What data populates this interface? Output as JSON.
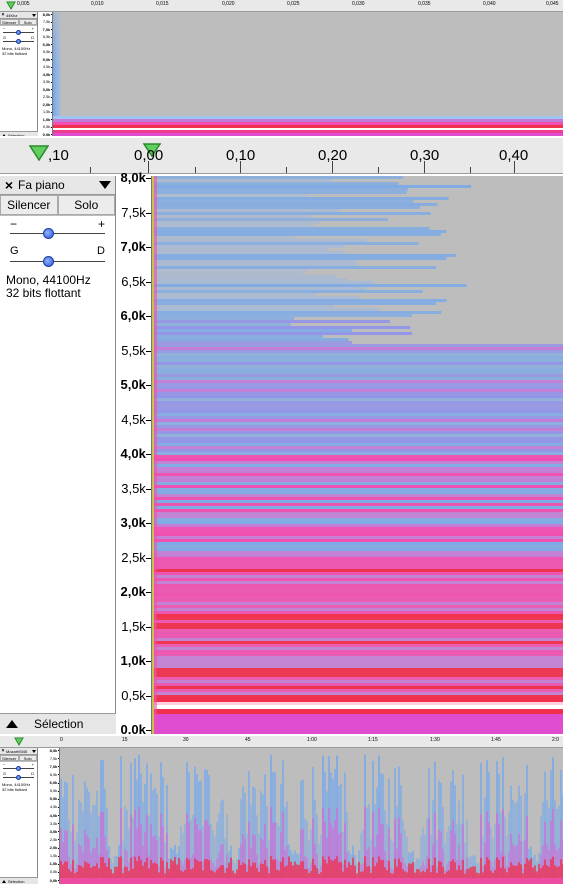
{
  "colors": {
    "background": "#bdbdbd",
    "spectro_blue": "#6ea6f0",
    "spectro_pink": "#f04eb0",
    "spectro_red": "#f0304c",
    "spectro_white": "#ffffff"
  },
  "top_view": {
    "ruler_labels": [
      "0,005",
      "0,010",
      "0,015",
      "0,020",
      "0,025",
      "0,030",
      "0,035",
      "0,040",
      "0,045"
    ],
    "track": {
      "name": "44Khz",
      "mute_label": "Silencer",
      "solo_label": "Solo",
      "gain_minus": "−",
      "gain_plus": "+",
      "pan_left": "G",
      "pan_right": "D",
      "info_line1": "Mono, 44100Hz",
      "info_line2": "32 bits flottant",
      "selection_label": "Sélection"
    },
    "scale_labels": [
      "8,0k",
      "7,5k",
      "7,0k",
      "6,5k",
      "6,0k",
      "5,5k",
      "5,0k",
      "4,5k",
      "4,0k",
      "3,5k",
      "3,0k",
      "2,5k",
      "2,0k",
      "1,5k",
      "1,0k",
      "0,5k",
      "0,0k"
    ]
  },
  "middle_view": {
    "ruler_labels": [
      ",10",
      "0,00",
      "0,10",
      "0,20",
      "0,30",
      "0,40"
    ],
    "track": {
      "name": "Fa piano",
      "mute_label": "Silencer",
      "solo_label": "Solo",
      "gain_minus": "−",
      "gain_plus": "+",
      "pan_left": "G",
      "pan_right": "D",
      "info_line1": "Mono, 44100Hz",
      "info_line2": "32 bits flottant",
      "selection_label": "Sélection"
    },
    "scale_labels": [
      "8,0k",
      "7,5k",
      "7,0k",
      "6,5k",
      "6,0k",
      "5,5k",
      "5,0k",
      "4,5k",
      "4,0k",
      "3,5k",
      "3,0k",
      "2,5k",
      "2,0k",
      "1,5k",
      "1,0k",
      "0,5k",
      "0,0k"
    ]
  },
  "bottom_view": {
    "ruler_labels": [
      "0",
      "15",
      "30",
      "45",
      "1:00",
      "1:15",
      "1:30",
      "1:45",
      "2:0"
    ],
    "track": {
      "name": "Mozart9345",
      "mute_label": "Silencer",
      "solo_label": "Solo",
      "gain_minus": "−",
      "gain_plus": "+",
      "pan_left": "G",
      "pan_right": "D",
      "info_line1": "Mono, 44100Hz",
      "info_line2": "32 bits flottant",
      "selection_label": "Sélection"
    },
    "scale_labels": [
      "8,0k",
      "7,5k",
      "7,0k",
      "6,5k",
      "6,0k",
      "5,5k",
      "5,0k",
      "4,5k",
      "4,0k",
      "3,5k",
      "3,0k",
      "2,5k",
      "2,0k",
      "1,5k",
      "1,0k",
      "0,5k",
      "0,0k"
    ]
  }
}
